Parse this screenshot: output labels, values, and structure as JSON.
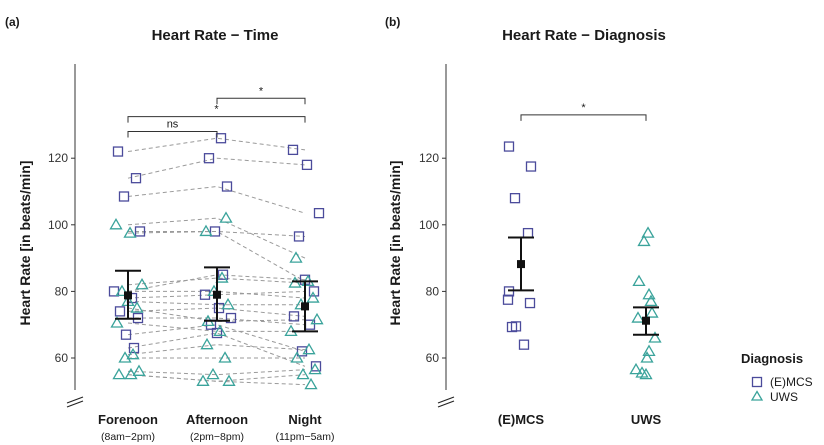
{
  "panels": [
    {
      "label": "(a)",
      "title": "Heart Rate − Time"
    },
    {
      "label": "(b)",
      "title": "Heart Rate − Diagnosis"
    }
  ],
  "legend": {
    "title": "Diagnosis",
    "entries": [
      {
        "name": "(E)MCS",
        "color": "#4b4b9b",
        "marker": "square"
      },
      {
        "name": "UWS",
        "color": "#3aa39b",
        "marker": "triangle"
      }
    ]
  },
  "chart_data": [
    {
      "type": "scatter",
      "title": "Heart Rate − Time",
      "ylabel": "Heart Rate [in beats/min]",
      "ylim": [
        52,
        148
      ],
      "yticks": [
        60,
        80,
        100,
        120
      ],
      "categories": [
        "Forenoon",
        "Afternoon",
        "Night"
      ],
      "category_sublabels": [
        "(8am−2pm)",
        "(2pm−8pm)",
        "(11pm−5am)"
      ],
      "subjects": [
        {
          "group": "(E)MCS",
          "values": [
            122,
            126,
            122.5
          ]
        },
        {
          "group": "(E)MCS",
          "values": [
            114,
            120,
            118
          ]
        },
        {
          "group": "(E)MCS",
          "values": [
            108.5,
            111.5,
            103.5
          ]
        },
        {
          "group": "(E)MCS",
          "values": [
            98,
            98,
            96.5
          ]
        },
        {
          "group": "(E)MCS",
          "values": [
            80,
            85,
            83.5
          ]
        },
        {
          "group": "(E)MCS",
          "values": [
            78,
            79,
            80
          ]
        },
        {
          "group": "(E)MCS",
          "values": [
            74,
            75,
            72.5
          ]
        },
        {
          "group": "(E)MCS",
          "values": [
            72,
            72,
            70
          ]
        },
        {
          "group": "(E)MCS",
          "values": [
            67,
            70,
            62
          ]
        },
        {
          "group": "(E)MCS",
          "values": [
            63,
            67.5,
            57.5
          ]
        },
        {
          "group": "UWS",
          "values": [
            100,
            102,
            90
          ]
        },
        {
          "group": "UWS",
          "values": [
            97.5,
            98,
            83
          ]
        },
        {
          "group": "UWS",
          "values": [
            82,
            84,
            82.5
          ]
        },
        {
          "group": "UWS",
          "values": [
            80,
            80,
            78
          ]
        },
        {
          "group": "UWS",
          "values": [
            77,
            76,
            76
          ]
        },
        {
          "group": "UWS",
          "values": [
            75,
            71,
            71.5
          ]
        },
        {
          "group": "UWS",
          "values": [
            70.5,
            68,
            68
          ]
        },
        {
          "group": "UWS",
          "values": [
            61,
            64,
            62.5
          ]
        },
        {
          "group": "UWS",
          "values": [
            60,
            60,
            60
          ]
        },
        {
          "group": "UWS",
          "values": [
            56,
            55,
            56.5
          ]
        },
        {
          "group": "UWS",
          "values": [
            55,
            53,
            55
          ]
        },
        {
          "group": "UWS",
          "values": [
            55,
            53,
            52
          ]
        }
      ],
      "summary": [
        {
          "category": "Forenoon",
          "mean": 78.8,
          "lower": 71.8,
          "upper": 86.2
        },
        {
          "category": "Afternoon",
          "mean": 79,
          "lower": 71.2,
          "upper": 87.2
        },
        {
          "category": "Night",
          "mean": 75.5,
          "lower": 68,
          "upper": 83
        }
      ],
      "significance": [
        {
          "from": "Forenoon",
          "to": "Afternoon",
          "label": "ns",
          "level": 128
        },
        {
          "from": "Forenoon",
          "to": "Night",
          "label": "*",
          "level": 132.5
        },
        {
          "from": "Afternoon",
          "to": "Night",
          "label": "*",
          "level": 138
        }
      ],
      "axis_break": true,
      "grid": false
    },
    {
      "type": "scatter",
      "title": "Heart Rate − Diagnosis",
      "ylabel": "Heart Rate [in beats/min]",
      "ylim": [
        52,
        148
      ],
      "yticks": [
        60,
        80,
        100,
        120
      ],
      "categories": [
        "(E)MCS",
        "UWS"
      ],
      "points": [
        {
          "category": "(E)MCS",
          "jitter": -0.12,
          "value": 123.5
        },
        {
          "category": "(E)MCS",
          "jitter": 0.1,
          "value": 117.5
        },
        {
          "category": "(E)MCS",
          "jitter": -0.06,
          "value": 108
        },
        {
          "category": "(E)MCS",
          "jitter": 0.07,
          "value": 97.5
        },
        {
          "category": "(E)MCS",
          "jitter": -0.12,
          "value": 80
        },
        {
          "category": "(E)MCS",
          "jitter": -0.13,
          "value": 77.5
        },
        {
          "category": "(E)MCS",
          "jitter": 0.09,
          "value": 76.5
        },
        {
          "category": "(E)MCS",
          "jitter": -0.05,
          "value": 69.5
        },
        {
          "category": "(E)MCS",
          "jitter": -0.09,
          "value": 69.3
        },
        {
          "category": "(E)MCS",
          "jitter": 0.03,
          "value": 64
        },
        {
          "category": "UWS",
          "jitter": 0.02,
          "value": 97.5
        },
        {
          "category": "UWS",
          "jitter": -0.02,
          "value": 95
        },
        {
          "category": "UWS",
          "jitter": -0.07,
          "value": 83
        },
        {
          "category": "UWS",
          "jitter": 0.03,
          "value": 79
        },
        {
          "category": "UWS",
          "jitter": 0.05,
          "value": 77
        },
        {
          "category": "UWS",
          "jitter": 0.06,
          "value": 73.5
        },
        {
          "category": "UWS",
          "jitter": -0.08,
          "value": 72
        },
        {
          "category": "UWS",
          "jitter": 0.09,
          "value": 66
        },
        {
          "category": "UWS",
          "jitter": 0.03,
          "value": 62
        },
        {
          "category": "UWS",
          "jitter": 0.01,
          "value": 60
        },
        {
          "category": "UWS",
          "jitter": -0.1,
          "value": 56.5
        },
        {
          "category": "UWS",
          "jitter": -0.04,
          "value": 55.5
        },
        {
          "category": "UWS",
          "jitter": 0.0,
          "value": 55
        }
      ],
      "summary": [
        {
          "category": "(E)MCS",
          "mean": 88.2,
          "lower": 80.3,
          "upper": 96.2
        },
        {
          "category": "UWS",
          "mean": 71.2,
          "lower": 67,
          "upper": 75.2
        }
      ],
      "significance": [
        {
          "from": "(E)MCS",
          "to": "UWS",
          "label": "*",
          "level": 133
        }
      ],
      "axis_break": true,
      "grid": false
    }
  ]
}
